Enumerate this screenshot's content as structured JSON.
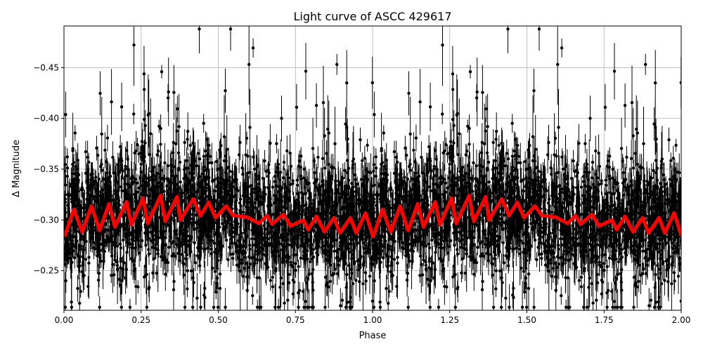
{
  "chart_data": {
    "type": "scatter",
    "title": "Light curve of ASCC 429617",
    "xlabel": "Phase",
    "ylabel": "Δ Magnitude",
    "xlim": [
      0,
      2
    ],
    "ylim": [
      -0.491,
      -0.211
    ],
    "y_inverted": true,
    "grid": true,
    "x_ticks": [
      "0.00",
      "0.25",
      "0.50",
      "0.75",
      "1.00",
      "1.25",
      "1.50",
      "1.75",
      "2.00"
    ],
    "x_tick_values": [
      0,
      0.25,
      0.5,
      0.75,
      1,
      1.25,
      1.5,
      1.75,
      2
    ],
    "y_ticks": [
      "−0.45",
      "−0.40",
      "−0.35",
      "−0.30",
      "−0.25"
    ],
    "y_tick_values": [
      -0.45,
      -0.4,
      -0.35,
      -0.3,
      -0.25
    ],
    "colors": {
      "data": "#000000",
      "model": "#ff0000",
      "grid": "#b0b0b0"
    },
    "observations": {
      "marker": "circle with error bars",
      "color": "#000000",
      "scatter_range": [
        -0.49,
        -0.21
      ]
    },
    "model_period_phase": 1,
    "model": {
      "phase": [
        0.002,
        0.032,
        0.059,
        0.089,
        0.115,
        0.146,
        0.165,
        0.203,
        0.218,
        0.256,
        0.271,
        0.313,
        0.328,
        0.366,
        0.377,
        0.419,
        0.442,
        0.469,
        0.491,
        0.526,
        0.548,
        0.594,
        0.632,
        0.658,
        0.674,
        0.711,
        0.734,
        0.776,
        0.791,
        0.818,
        0.844,
        0.875,
        0.894,
        0.928,
        0.947,
        0.977,
        1.0
      ],
      "mag": [
        -0.2837,
        -0.3104,
        -0.2883,
        -0.3138,
        -0.2897,
        -0.3159,
        -0.2931,
        -0.3179,
        -0.2952,
        -0.3216,
        -0.2966,
        -0.3241,
        -0.2986,
        -0.3228,
        -0.3,
        -0.3207,
        -0.3043,
        -0.3173,
        -0.3021,
        -0.3138,
        -0.3043,
        -0.3028,
        -0.2966,
        -0.3043,
        -0.2959,
        -0.3055,
        -0.294,
        -0.3,
        -0.2905,
        -0.3034,
        -0.2883,
        -0.3021,
        -0.2871,
        -0.3021,
        -0.2871,
        -0.3069,
        -0.2848
      ]
    }
  }
}
